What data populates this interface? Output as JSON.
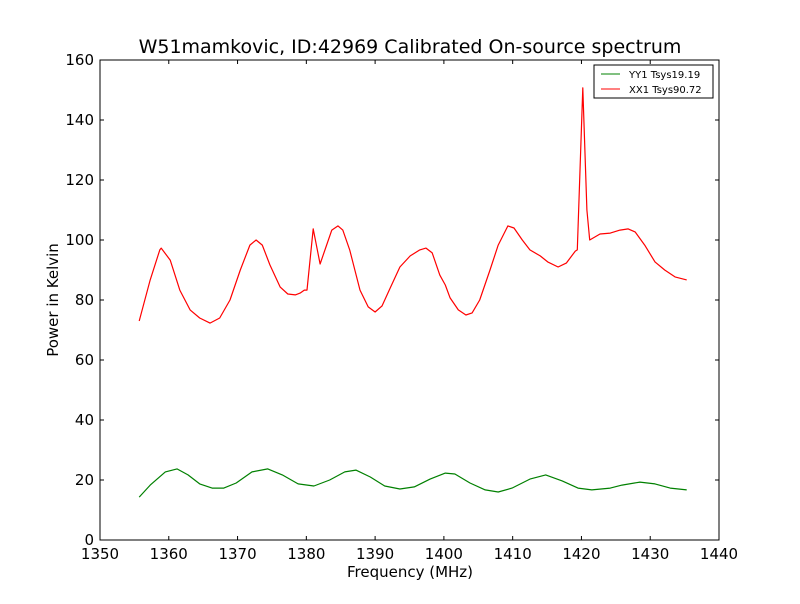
{
  "chart_data": {
    "type": "line",
    "title": "W51mamkovic, ID:42969 Calibrated On-source spectrum",
    "xlabel": "Frequency (MHz)",
    "ylabel": "Power in Kelvin",
    "xlim": [
      1350,
      1440
    ],
    "ylim": [
      0,
      160
    ],
    "xticks": [
      1350,
      1360,
      1370,
      1380,
      1390,
      1400,
      1410,
      1420,
      1430,
      1440
    ],
    "yticks": [
      0,
      20,
      40,
      60,
      80,
      100,
      120,
      140,
      160
    ],
    "grid": false,
    "legend": "top-right",
    "series": [
      {
        "name": "YY1 Tsys19.19",
        "color": "#008000",
        "x": [
          1355.7,
          1357.3,
          1359.5,
          1361.2,
          1362.8,
          1364.5,
          1366.3,
          1368.0,
          1369.8,
          1372.1,
          1374.4,
          1376.5,
          1378.8,
          1381.1,
          1383.4,
          1385.6,
          1387.2,
          1389.3,
          1391.4,
          1393.6,
          1395.7,
          1398.0,
          1400.2,
          1401.6,
          1403.8,
          1406.0,
          1407.9,
          1409.9,
          1412.5,
          1414.8,
          1417.2,
          1419.5,
          1421.5,
          1424.2,
          1425.9,
          1428.5,
          1430.7,
          1432.9,
          1435.3
        ],
        "y": [
          14.3,
          18.3,
          22.7,
          23.7,
          21.7,
          18.7,
          17.3,
          17.3,
          19,
          22.7,
          23.7,
          21.7,
          18.7,
          18,
          20,
          22.7,
          23.3,
          21,
          18,
          17,
          17.7,
          20.3,
          22.3,
          22,
          19,
          16.7,
          16,
          17.3,
          20.3,
          21.7,
          19.7,
          17.3,
          16.7,
          17.3,
          18.3,
          19.3,
          18.7,
          17.3,
          16.7
        ]
      },
      {
        "name": "XX1 Tsys90.72",
        "color": "#ff0000",
        "x": [
          1355.7,
          1357.3,
          1358.7,
          1358.9,
          1360.2,
          1361.6,
          1363.1,
          1364.5,
          1366.0,
          1367.4,
          1368.9,
          1370.4,
          1371.8,
          1372.7,
          1373.6,
          1374.7,
          1376.2,
          1377.3,
          1378.4,
          1379.1,
          1379.7,
          1380.1,
          1381.0,
          1382.0,
          1382.9,
          1383.7,
          1384.6,
          1385.3,
          1386.3,
          1387.8,
          1389.0,
          1390.0,
          1391.0,
          1392.2,
          1393.6,
          1395.1,
          1396.5,
          1397.4,
          1398.3,
          1399.4,
          1400.2,
          1400.9,
          1402.1,
          1403.2,
          1404.1,
          1405.2,
          1406.7,
          1407.9,
          1409.3,
          1410.2,
          1411.4,
          1412.5,
          1414.0,
          1415.1,
          1416.6,
          1417.8,
          1419.1,
          1419.4,
          1420.2,
          1420.8,
          1421.2,
          1422.7,
          1424.2,
          1425.6,
          1426.8,
          1427.8,
          1429.2,
          1430.7,
          1432.1,
          1433.6,
          1435.3
        ],
        "y": [
          73,
          86.7,
          96.7,
          97.3,
          93.3,
          83.3,
          76.7,
          74,
          72.3,
          74,
          80,
          90,
          98.3,
          100,
          98.3,
          91.7,
          84.3,
          82,
          81.7,
          82.3,
          83.3,
          83.3,
          103.7,
          92,
          98,
          103.3,
          104.7,
          103.3,
          96.7,
          83.3,
          77.7,
          76,
          78,
          84,
          91,
          94.7,
          96.7,
          97.3,
          95.7,
          88.3,
          85,
          80.7,
          76.7,
          75,
          75.7,
          80,
          90,
          98.3,
          104.7,
          104,
          100,
          96.7,
          94.7,
          92.7,
          91,
          92.3,
          96.3,
          96.7,
          150.7,
          110,
          100,
          102,
          102.3,
          103.3,
          103.7,
          102.7,
          98.3,
          92.7,
          90,
          87.7,
          86.7
        ]
      }
    ]
  }
}
